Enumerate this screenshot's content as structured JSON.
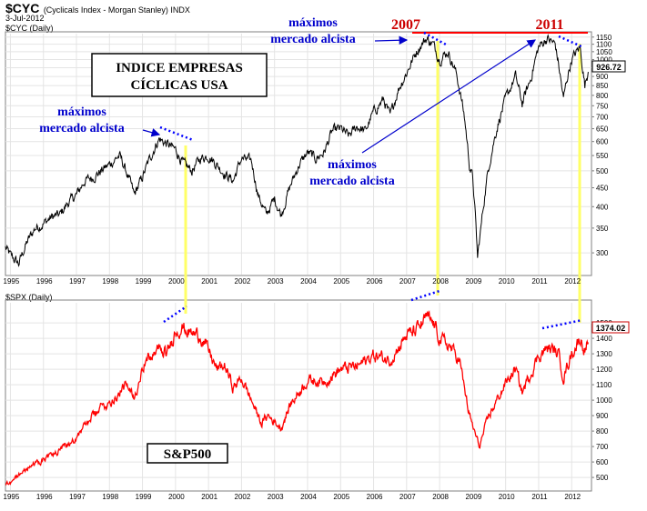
{
  "header": {
    "ticker": "$CYC",
    "name": "(Cyclicals Index - Morgan Stanley) INDX",
    "date": "3-Jul-2012"
  },
  "chart_data": [
    {
      "id": "cyc",
      "type": "line",
      "label": "$CYC (Daily)",
      "color": "#000000",
      "last_value": "926.72",
      "scale": "log",
      "ylim": [
        265,
        1175
      ],
      "yticks": [
        300,
        350,
        400,
        450,
        500,
        550,
        600,
        650,
        700,
        750,
        800,
        850,
        900,
        950,
        1000,
        1050,
        1100,
        1150
      ],
      "xlim": [
        1994.85,
        2012.6
      ],
      "xticks": [
        "1995",
        "1996",
        "1997",
        "1998",
        "1999",
        "2000",
        "2001",
        "2002",
        "2003",
        "2004",
        "2005",
        "2006",
        "2007",
        "2008",
        "2009",
        "2010",
        "2011",
        "2012"
      ],
      "series": [
        {
          "x": [
            1994.85,
            1995.0,
            1995.25,
            1995.5,
            1995.75,
            1996.0,
            1996.25,
            1996.5,
            1996.75,
            1997.0,
            1997.25,
            1997.5,
            1997.75,
            1998.0,
            1998.3,
            1998.5,
            1998.75,
            1999.0,
            1999.3,
            1999.5,
            1999.75,
            2000.0,
            2000.25,
            2000.5,
            2000.75,
            2001.0,
            2001.25,
            2001.5,
            2001.75,
            2002.0,
            2002.3,
            2002.5,
            2002.75,
            2003.0,
            2003.2,
            2003.5,
            2003.75,
            2004.0,
            2004.25,
            2004.5,
            2004.75,
            2005.0,
            2005.25,
            2005.5,
            2005.75,
            2006.0,
            2006.3,
            2006.5,
            2006.75,
            2007.0,
            2007.3,
            2007.45,
            2007.6,
            2007.8,
            2008.0,
            2008.25,
            2008.5,
            2008.75,
            2008.9,
            2009.0,
            2009.15,
            2009.25,
            2009.5,
            2009.75,
            2010.0,
            2010.3,
            2010.5,
            2010.75,
            2011.0,
            2011.25,
            2011.5,
            2011.75,
            2011.85,
            2012.0,
            2012.25,
            2012.4,
            2012.5
          ],
          "y": [
            310,
            295,
            280,
            320,
            350,
            360,
            375,
            380,
            410,
            430,
            470,
            480,
            500,
            520,
            550,
            500,
            430,
            480,
            560,
            610,
            590,
            570,
            520,
            500,
            540,
            550,
            520,
            490,
            470,
            540,
            530,
            430,
            380,
            420,
            380,
            460,
            520,
            560,
            540,
            560,
            640,
            650,
            620,
            660,
            640,
            720,
            780,
            700,
            830,
            920,
            1050,
            1100,
            1140,
            1100,
            1000,
            1050,
            920,
            700,
            520,
            480,
            290,
            350,
            520,
            660,
            780,
            900,
            760,
            880,
            1080,
            1140,
            1100,
            780,
            880,
            1000,
            1080,
            850,
            926
          ]
        }
      ]
    },
    {
      "id": "spx",
      "type": "line",
      "label": "$SPX (Daily)",
      "color": "#ff0000",
      "last_value": "1374.02",
      "ylim": [
        430,
        1630
      ],
      "yticks": [
        500,
        600,
        700,
        800,
        900,
        1000,
        1100,
        1200,
        1300,
        1400,
        1500
      ],
      "xlim": [
        1994.85,
        2012.6
      ],
      "xticks": [
        "1995",
        "1996",
        "1997",
        "1998",
        "1999",
        "2000",
        "2001",
        "2002",
        "2003",
        "2004",
        "2005",
        "2006",
        "2007",
        "2008",
        "2009",
        "2010",
        "2011",
        "2012"
      ],
      "series": [
        {
          "x": [
            1994.85,
            1995.0,
            1995.5,
            1996.0,
            1996.5,
            1997.0,
            1997.5,
            1997.8,
            1998.0,
            1998.5,
            1998.75,
            1999.0,
            1999.5,
            1999.75,
            2000.0,
            2000.2,
            2000.5,
            2000.75,
            2001.0,
            2001.25,
            2001.5,
            2001.75,
            2002.0,
            2002.3,
            2002.6,
            2002.8,
            2003.2,
            2003.5,
            2004.0,
            2004.5,
            2005.0,
            2005.5,
            2006.0,
            2006.5,
            2007.0,
            2007.3,
            2007.6,
            2007.8,
            2008.0,
            2008.3,
            2008.6,
            2008.9,
            2009.2,
            2009.5,
            2010.0,
            2010.3,
            2010.5,
            2011.0,
            2011.3,
            2011.6,
            2011.75,
            2012.0,
            2012.25,
            2012.4,
            2012.5
          ],
          "y": [
            460,
            470,
            560,
            620,
            670,
            760,
            900,
            960,
            980,
            1100,
            1000,
            1230,
            1330,
            1300,
            1450,
            1470,
            1430,
            1420,
            1320,
            1200,
            1220,
            1080,
            1140,
            1000,
            850,
            900,
            820,
            980,
            1130,
            1120,
            1200,
            1220,
            1290,
            1260,
            1420,
            1450,
            1530,
            1500,
            1400,
            1350,
            1260,
            900,
            700,
            900,
            1110,
            1200,
            1050,
            1290,
            1340,
            1300,
            1150,
            1300,
            1400,
            1330,
            1374
          ]
        }
      ]
    }
  ],
  "annotations": {
    "title_box": [
      "INDICE EMPRESAS",
      "CÍCLICAS USA"
    ],
    "maximos_1": [
      "máximos",
      "mercado alcista"
    ],
    "maximos_2": [
      "máximos",
      "mercado alcista"
    ],
    "maximos_3": [
      "máximos",
      "mercado alcista"
    ],
    "year_2007": "2007",
    "year_2011": "2011",
    "sp500_box": "S&P500"
  },
  "colors": {
    "annotation_blue": "#0000cc",
    "year_red": "#cc0000",
    "vertical_yellow": "#ffff66",
    "dotted_blue": "#0000ff",
    "resistance_red": "#ff0000"
  }
}
